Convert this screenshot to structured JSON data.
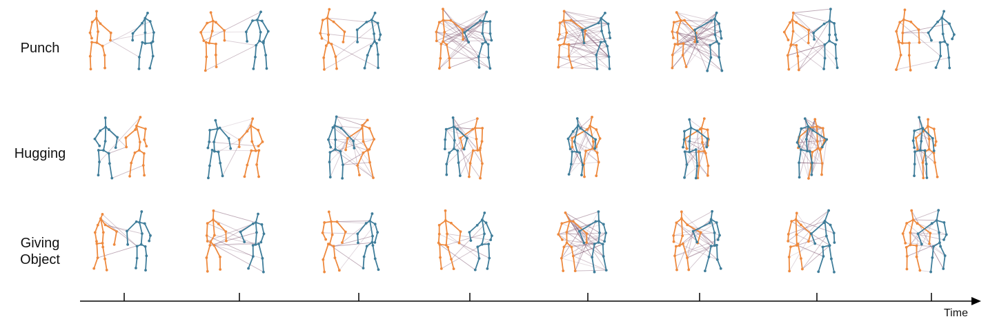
{
  "figure": {
    "rows": [
      {
        "label": "Punch"
      },
      {
        "label": "Hugging"
      },
      {
        "label": "Giving Object"
      }
    ],
    "frames_per_row": 8,
    "axis": {
      "label": "Time"
    }
  },
  "colors": {
    "person_a": "#ee8a3f",
    "person_b": "#3f7d9a",
    "interaction_edges": "#7a4f6a",
    "axis": "#000000"
  }
}
